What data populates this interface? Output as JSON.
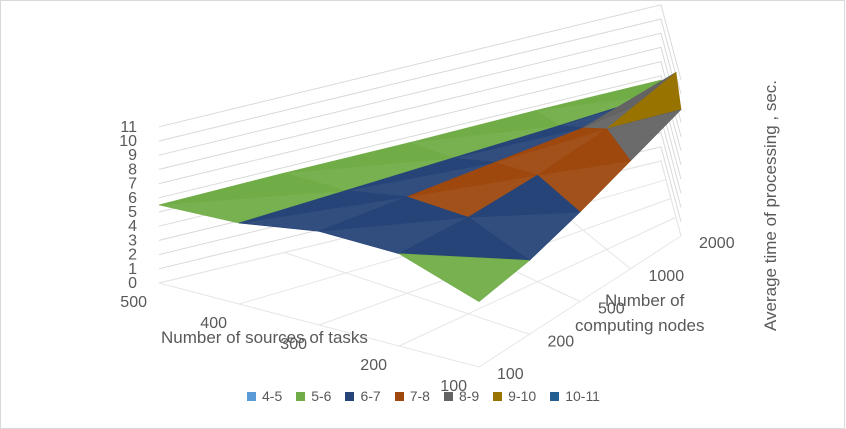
{
  "chart_data": {
    "type": "surface",
    "title": "",
    "xlabel": "Number of sources of tasks",
    "ylabel": "Number of computing nodes",
    "zlabel": "Average time of processing , sec.",
    "x_ticks": [
      "500",
      "400",
      "300",
      "200",
      "100"
    ],
    "y_ticks": [
      "100",
      "200",
      "500",
      "1000",
      "2000"
    ],
    "z_ticks": [
      "0",
      "1",
      "2",
      "3",
      "4",
      "5",
      "6",
      "7",
      "8",
      "9",
      "10",
      "11"
    ],
    "zlim": [
      0,
      11
    ],
    "legend_position": "bottom",
    "bands": [
      {
        "name": "4-5",
        "color": "#5b9bd5"
      },
      {
        "name": "5-6",
        "color": "#70ad47"
      },
      {
        "name": "6-7",
        "color": "#264478"
      },
      {
        "name": "7-8",
        "color": "#9e480e"
      },
      {
        "name": "8-9",
        "color": "#636363"
      },
      {
        "name": "9-10",
        "color": "#997300"
      },
      {
        "name": "10-11",
        "color": "#255e91"
      }
    ],
    "sources": [
      500,
      400,
      300,
      200,
      100
    ],
    "nodes": [
      100,
      200,
      500,
      1000,
      2000
    ],
    "z": [
      [
        5.5,
        5.6,
        5.6,
        5.7,
        5.7
      ],
      [
        5.7,
        5.8,
        5.9,
        6.0,
        6.1
      ],
      [
        6.6,
        6.8,
        7.0,
        7.2,
        7.6
      ],
      [
        6.5,
        6.8,
        7.5,
        8.5,
        10.2
      ],
      [
        4.6,
        5.2,
        6.3,
        7.6,
        8.9
      ]
    ]
  }
}
